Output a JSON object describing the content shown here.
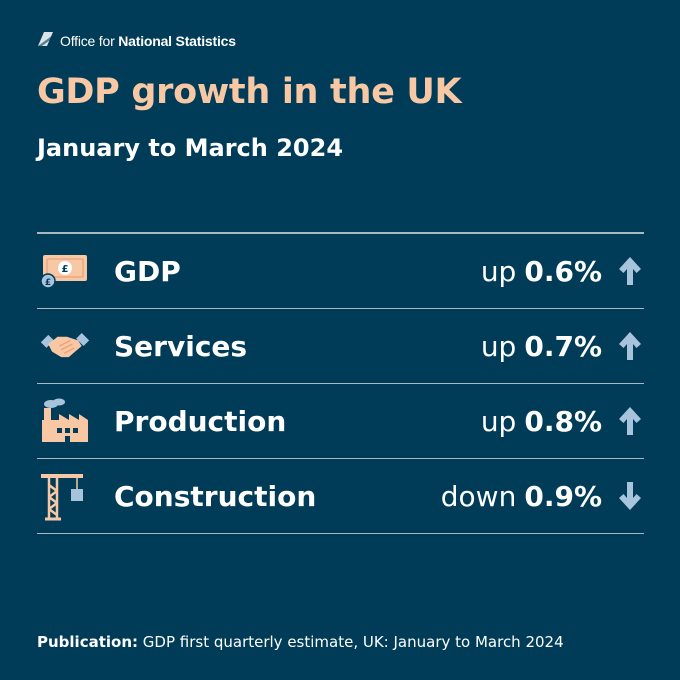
{
  "header": {
    "org_light": "Office for ",
    "org_bold": "National Statistics",
    "logo_icon": "ons-logo-icon"
  },
  "title": "GDP growth in the UK",
  "subtitle": "January to March 2024",
  "rows": [
    {
      "label": "GDP",
      "direction": "up",
      "value": "0.6%",
      "icon": "banknote-icon",
      "arrow": "arrow-up-icon"
    },
    {
      "label": "Services",
      "direction": "up",
      "value": "0.7%",
      "icon": "handshake-icon",
      "arrow": "arrow-up-icon"
    },
    {
      "label": "Production",
      "direction": "up",
      "value": "0.8%",
      "icon": "factory-icon",
      "arrow": "arrow-up-icon"
    },
    {
      "label": "Construction",
      "direction": "down",
      "value": "0.9%",
      "icon": "crane-icon",
      "arrow": "arrow-down-icon"
    }
  ],
  "footer": {
    "label": "Publication:",
    "text": " GDP first quarterly estimate, UK: January to March 2024"
  },
  "colors": {
    "background": "#003c57",
    "title": "#f8c8a4",
    "icon_peach": "#f8c8a4",
    "icon_blue": "#a8c4dc",
    "divider": "#a9b8c3"
  }
}
